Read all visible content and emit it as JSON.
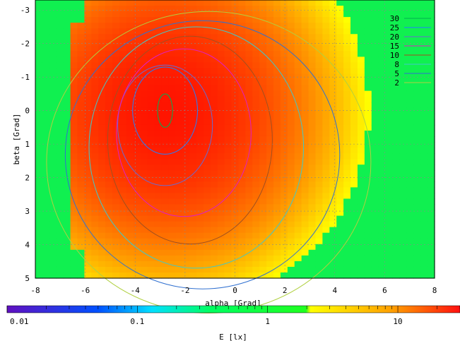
{
  "chart_data": {
    "type": "heatmap",
    "title": "",
    "xlabel": "alpha [Grad]",
    "ylabel": "beta [Grad]",
    "xlim": [
      -8,
      8
    ],
    "ylim": [
      -3.3,
      5
    ],
    "y_inverted": true,
    "xticks": [
      "-8",
      "-6",
      "-4",
      "-2",
      "0",
      "2",
      "4",
      "6",
      "8"
    ],
    "yticks": [
      "-3",
      "-2",
      "-1",
      "0",
      "1",
      "2",
      "3",
      "4",
      "5"
    ],
    "grid": true,
    "colorbar": {
      "label": "E [lx]",
      "scale": "log",
      "range": [
        0.01,
        30
      ],
      "ticks": [
        "0.01",
        "0.1",
        "1",
        "10"
      ]
    },
    "legend_position": "top-right",
    "contour_levels": [
      {
        "label": "30",
        "color": "#00b050"
      },
      {
        "label": "25",
        "color": "#2080ff"
      },
      {
        "label": "20",
        "color": "#6a6ad0"
      },
      {
        "label": "15",
        "color": "#e020c0"
      },
      {
        "label": "10",
        "color": "#a05020"
      },
      {
        "label": "8",
        "color": "#40c8c8"
      },
      {
        "label": "5",
        "color": "#3070d0"
      },
      {
        "label": "2",
        "color": "#b0d040"
      }
    ],
    "peak": {
      "alpha": -2.8,
      "beta": 0.0,
      "value": 30
    }
  }
}
